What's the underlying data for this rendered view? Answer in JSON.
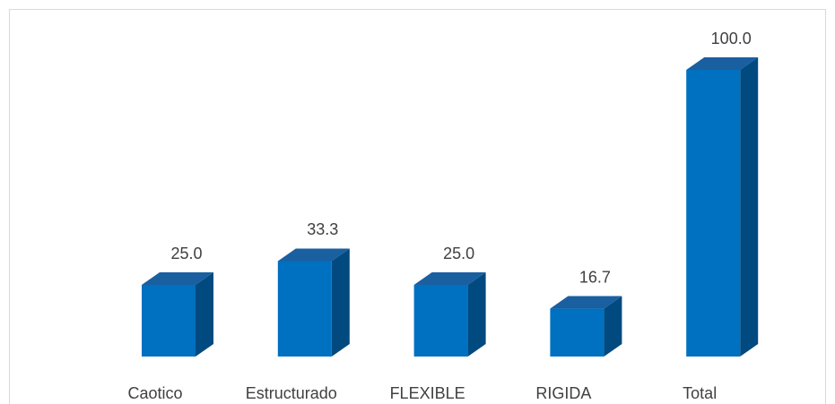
{
  "chart_data": {
    "type": "bar3d",
    "categories": [
      "Caotico",
      "Estructurado",
      "FLEXIBLE",
      "RIGIDA",
      "Total"
    ],
    "values": [
      25,
      33.3,
      25,
      16.7,
      100
    ],
    "value_labels": [
      "25.0",
      "33.3",
      "25.0",
      "16.7",
      "100.0"
    ],
    "color": "#0070c0",
    "ylim": [
      0,
      100
    ]
  }
}
